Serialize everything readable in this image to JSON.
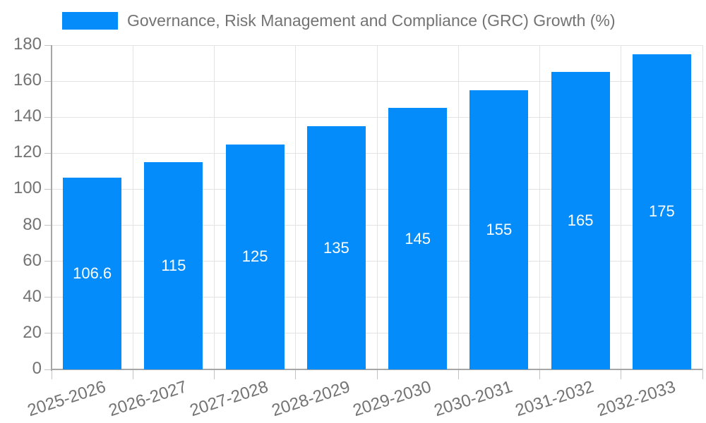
{
  "chart_data": {
    "type": "bar",
    "title": "",
    "legend": {
      "label": "Governance, Risk Management and Compliance (GRC) Growth (%)",
      "position": "top"
    },
    "categories": [
      "2025-2026",
      "2026-2027",
      "2027-2028",
      "2028-2029",
      "2029-2030",
      "2030-2031",
      "2031-2032",
      "2032-2033"
    ],
    "series": [
      {
        "name": "Governance, Risk Management and Compliance (GRC) Growth (%)",
        "values": [
          106.6,
          115,
          125,
          135,
          145,
          155,
          165,
          175
        ],
        "data_labels": [
          "106.6",
          "115",
          "125",
          "135",
          "145",
          "155",
          "165",
          "175"
        ]
      }
    ],
    "xlabel": "",
    "ylabel": "",
    "ylim": [
      0,
      180
    ],
    "ytick_step": 20,
    "ytick_labels": [
      "0",
      "20",
      "40",
      "60",
      "80",
      "100",
      "120",
      "140",
      "160",
      "180"
    ],
    "grid": true,
    "x_label_rotation_deg": -18,
    "colors": {
      "bar": "#048cfb",
      "bar_label_text": "#ffffff",
      "axis_text": "#737373",
      "legend_text": "#737373",
      "axis_line": "#a6a6a6",
      "tick_line": "#c2c2c2",
      "gridline": "#e3e3e3",
      "background": "#ffffff"
    }
  }
}
